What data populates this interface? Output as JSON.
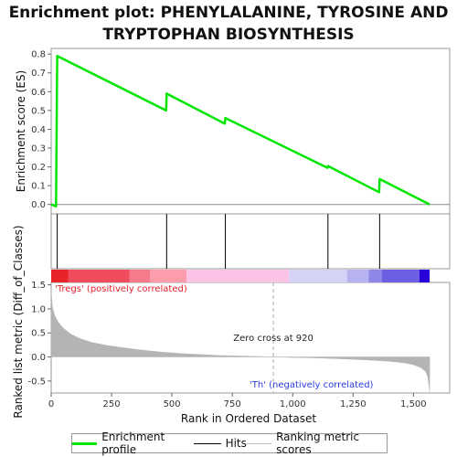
{
  "chart_data": {
    "type": "line",
    "title": "Enrichment plot: PHENYLALANINE, TYROSINE AND TRYPTOPHAN BIOSYNTHESIS",
    "title_lines": [
      "Enrichment plot: PHENYLALANINE, TYROSINE AND",
      "TRYPTOPHAN BIOSYNTHESIS"
    ],
    "xlabel": "Rank in Ordered Dataset",
    "xlim": [
      0,
      1650
    ],
    "x_ticks": [
      0,
      250,
      500,
      750,
      1000,
      1250,
      1500
    ],
    "x_tick_labels": [
      "0",
      "250",
      "500",
      "750",
      "1,000",
      "1,250",
      "1,500"
    ],
    "es_panel": {
      "ylabel": "Enrichment score (ES)",
      "ylim": [
        -0.05,
        0.83
      ],
      "y_ticks": [
        0.0,
        0.1,
        0.2,
        0.3,
        0.4,
        0.5,
        0.6,
        0.7,
        0.8
      ],
      "y_tick_labels": [
        "0.0",
        "0.1",
        "0.2",
        "0.3",
        "0.4",
        "0.5",
        "0.6",
        "0.7",
        "0.8"
      ],
      "zero_line": true,
      "series": [
        {
          "name": "Enrichment profile",
          "color": "#00e600",
          "x": [
            0,
            20,
            25,
            476,
            478,
            719,
            721,
            1144,
            1146,
            1358,
            1360,
            1567
          ],
          "y": [
            0.0,
            -0.01,
            0.79,
            0.5,
            0.59,
            0.43,
            0.46,
            0.195,
            0.205,
            0.065,
            0.135,
            0.0
          ]
        }
      ]
    },
    "hits": [
      25,
      478,
      721,
      1146,
      1360
    ],
    "heat_bar_segments": [
      {
        "end": 70,
        "color": "#e8232a"
      },
      {
        "end": 325,
        "color": "#f04c5c"
      },
      {
        "end": 410,
        "color": "#f57b8c"
      },
      {
        "end": 560,
        "color": "#fb9dab"
      },
      {
        "end": 985,
        "color": "#fbc4e6"
      },
      {
        "end": 1225,
        "color": "#d4d2f6"
      },
      {
        "end": 1315,
        "color": "#b6b3f0"
      },
      {
        "end": 1370,
        "color": "#8f87e8"
      },
      {
        "end": 1525,
        "color": "#6d5fe2"
      },
      {
        "end": 1567,
        "color": "#2a00d8"
      }
    ],
    "ranked_panel": {
      "ylabel": "Ranked list metric (Diff_of_Classes)",
      "ylim": [
        -0.75,
        1.55
      ],
      "y_ticks": [
        -0.5,
        0.0,
        0.5,
        1.0,
        1.5
      ],
      "y_tick_labels": [
        "-0.5",
        "0.0",
        "0.5",
        "1.0",
        "1.5"
      ],
      "metric_color": "#b4b4b4",
      "x": [
        0,
        5,
        15,
        30,
        50,
        80,
        120,
        170,
        230,
        300,
        380,
        460,
        540,
        620,
        700,
        780,
        860,
        920,
        1000,
        1100,
        1200,
        1300,
        1400,
        1460,
        1500,
        1530,
        1550,
        1560,
        1567
      ],
      "y": [
        1.35,
        1.05,
        0.85,
        0.72,
        0.6,
        0.48,
        0.38,
        0.3,
        0.24,
        0.19,
        0.14,
        0.1,
        0.07,
        0.05,
        0.03,
        0.02,
        0.01,
        0.0,
        -0.01,
        -0.02,
        -0.04,
        -0.06,
        -0.09,
        -0.12,
        -0.16,
        -0.22,
        -0.3,
        -0.42,
        -0.72
      ],
      "zero_cross": 920,
      "zero_cross_label": "Zero cross at 920",
      "pos_label": "'Tregs' (positively correlated)",
      "pos_label_color": "#e8232a",
      "neg_label": "'Th' (negatively correlated)",
      "neg_label_color": "#2a3cd8"
    }
  },
  "legend": {
    "items": [
      {
        "label": "Enrichment profile",
        "color": "#00e600"
      },
      {
        "label": "Hits",
        "color": "#000000"
      },
      {
        "label": "Ranking metric scores",
        "color": "#c0c0c0"
      }
    ]
  }
}
